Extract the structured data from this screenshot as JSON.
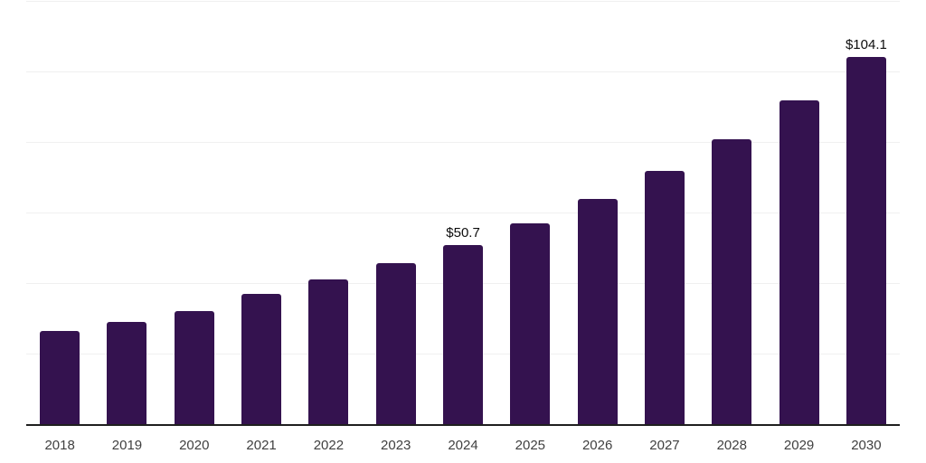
{
  "chart_data": {
    "type": "bar",
    "title": "",
    "xlabel": "",
    "ylabel": "",
    "categories": [
      "2018",
      "2019",
      "2020",
      "2021",
      "2022",
      "2023",
      "2024",
      "2025",
      "2026",
      "2027",
      "2028",
      "2029",
      "2030"
    ],
    "values": [
      26.5,
      28.9,
      32.1,
      36.9,
      41.0,
      45.7,
      50.7,
      57.0,
      63.9,
      71.8,
      80.9,
      91.7,
      104.1
    ],
    "data_labels": [
      "",
      "",
      "",
      "",
      "",
      "",
      "$50.7",
      "",
      "",
      "",
      "",
      "",
      "$104.1"
    ],
    "ylim": [
      0,
      120
    ],
    "gridline_values": [
      20,
      40,
      60,
      80,
      100,
      120
    ],
    "grid": "horizontal-only",
    "legend_position": "none",
    "y_axis_labels_visible": false,
    "colors": {
      "bar_fill": "#34124F",
      "gridline": "#f0f0f0",
      "axis_line": "#1f1f1f",
      "data_label_text": "#0d0d0d",
      "tick_label_text": "#404040",
      "background": "#ffffff"
    }
  }
}
